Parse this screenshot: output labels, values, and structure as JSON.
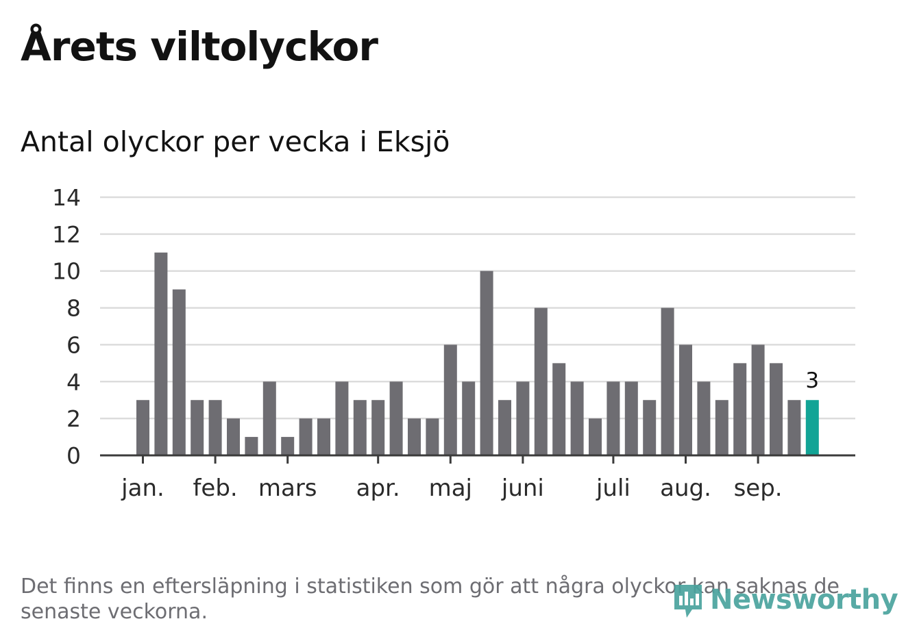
{
  "header": {
    "title": "Årets viltolyckor",
    "subtitle": "Antal olyckor per vecka i Eksjö"
  },
  "footer": {
    "note": "Det finns en eftersläpning i statistiken som gör att några olyckor kan saknas de senaste veckorna.",
    "logo_text": "Newsworthy"
  },
  "colors": {
    "bar": "#6e6d72",
    "highlight": "#12a496",
    "grid": "#dcdcdc",
    "axis": "#3b3b3b",
    "text": "#121212",
    "logo": "#4aa39e"
  },
  "chart_data": {
    "type": "bar",
    "title": "Antal olyckor per vecka i Eksjö",
    "xlabel": "",
    "ylabel": "",
    "ylim": [
      0,
      14
    ],
    "yticks": [
      0,
      2,
      4,
      6,
      8,
      10,
      12,
      14
    ],
    "grid": true,
    "legend": "none",
    "weeks": [
      1,
      2,
      3,
      4,
      5,
      6,
      7,
      8,
      9,
      10,
      11,
      12,
      13,
      14,
      15,
      16,
      17,
      18,
      19,
      20,
      21,
      22,
      23,
      24,
      25,
      26,
      27,
      28,
      29,
      30,
      31,
      32,
      33,
      34,
      35,
      36,
      37,
      38
    ],
    "values": [
      3,
      11,
      9,
      3,
      3,
      2,
      1,
      4,
      1,
      2,
      2,
      4,
      3,
      3,
      4,
      2,
      2,
      6,
      4,
      10,
      3,
      4,
      8,
      5,
      4,
      2,
      4,
      4,
      3,
      8,
      6,
      4,
      3,
      5,
      6,
      5,
      3,
      3
    ],
    "highlight_index": 37,
    "highlight_label": "3",
    "month_ticks": [
      {
        "label": "jan.",
        "week": 1
      },
      {
        "label": "feb.",
        "week": 5
      },
      {
        "label": "mars",
        "week": 9
      },
      {
        "label": "apr.",
        "week": 14
      },
      {
        "label": "maj",
        "week": 18
      },
      {
        "label": "juni",
        "week": 22
      },
      {
        "label": "juli",
        "week": 27
      },
      {
        "label": "aug.",
        "week": 31
      },
      {
        "label": "sep.",
        "week": 35
      }
    ]
  }
}
